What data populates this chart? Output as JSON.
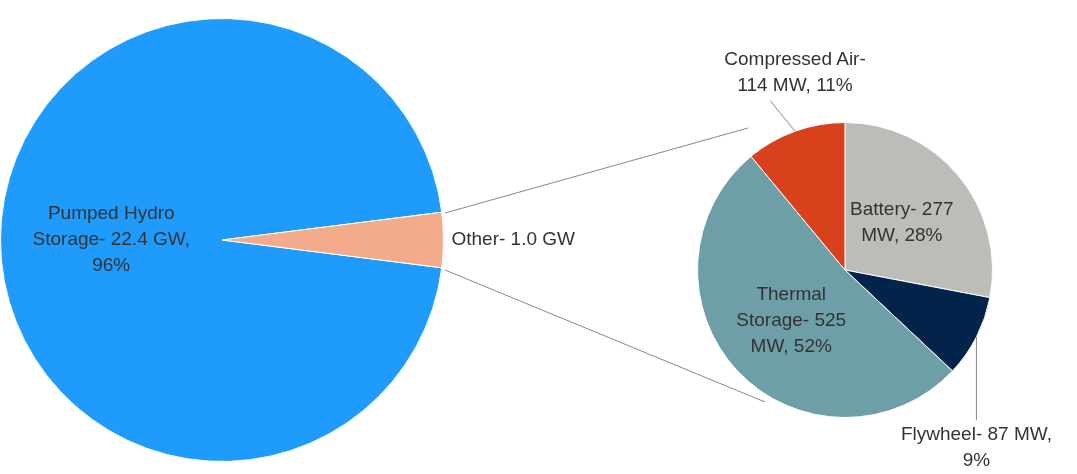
{
  "chart_data": [
    {
      "type": "pie",
      "categories": [
        "Pumped Hydro Storage- 22.4 GW, 96%",
        "Other- 1.0 GW"
      ],
      "values": [
        96,
        4
      ],
      "colors": [
        "#1e9bfb",
        "#f4ab8c"
      ],
      "legend": false
    },
    {
      "type": "pie",
      "categories": [
        "Battery- 277 MW, 28%",
        "Flywheel- 87 MW, 9%",
        "Thermal Storage- 525 MW, 52%",
        "Compressed Air- 114 MW, 11%"
      ],
      "values": [
        28,
        9,
        52,
        11
      ],
      "colors": [
        "#bebcb8",
        "#02234a",
        "#6e9fa8",
        "#d9401c"
      ],
      "legend": false
    }
  ]
}
